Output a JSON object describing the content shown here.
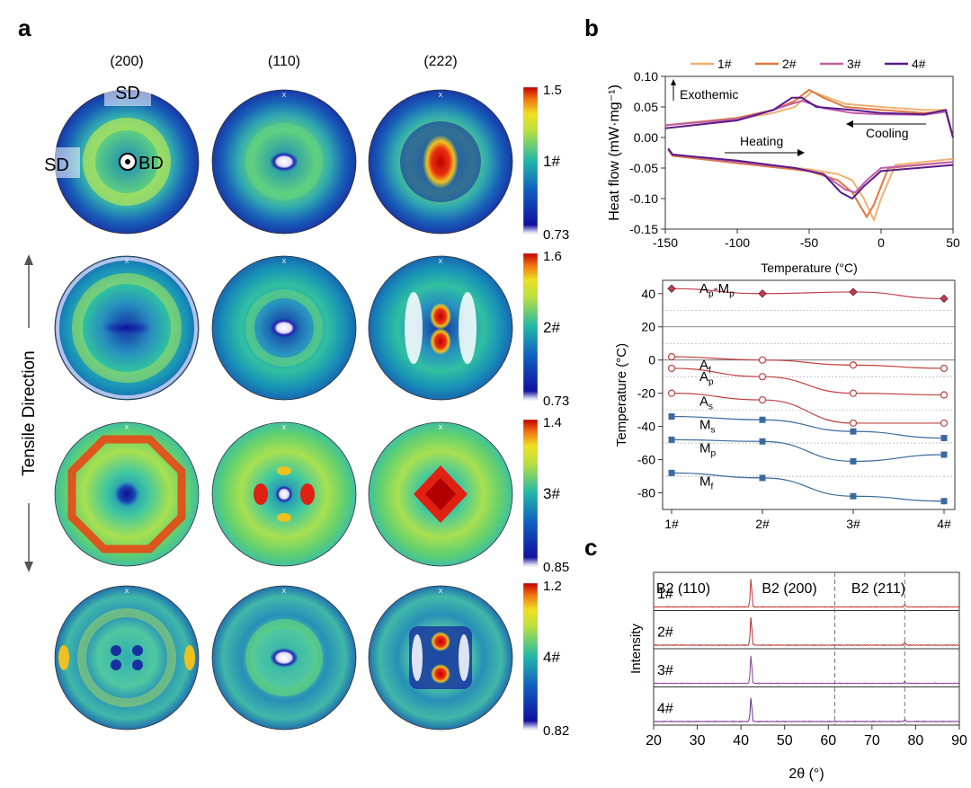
{
  "panels": {
    "a": "a",
    "b": "b",
    "c": "c"
  },
  "pole_figures": {
    "column_headers": [
      "(200)",
      "(110)",
      "(222)"
    ],
    "rows": [
      {
        "label": "1#",
        "cbar_max": "1.5",
        "cbar_mid": "1#",
        "cbar_min": "0.73",
        "patterns": [
          "ring",
          "dot",
          "bigred"
        ]
      },
      {
        "label": "2#",
        "cbar_max": "1.6",
        "cbar_mid": "2#",
        "cbar_min": "0.73",
        "patterns": [
          "ring2",
          "dot",
          "crescents"
        ]
      },
      {
        "label": "3#",
        "cbar_max": "1.4",
        "cbar_mid": "3#",
        "cbar_min": "0.85",
        "patterns": [
          "octagon",
          "quad",
          "diamond"
        ]
      },
      {
        "label": "4#",
        "cbar_max": "1.2",
        "cbar_mid": "4#",
        "cbar_min": "0.82",
        "patterns": [
          "faint",
          "dot",
          "twin"
        ]
      }
    ],
    "sd_top": "SD",
    "sd_left": "SD",
    "bd": "BD",
    "side_label": "Tensile Direction",
    "colors": {
      "low": "#1a1a9e",
      "mid": "#20b2a0",
      "high": "#e01010"
    }
  },
  "chart_data": [
    {
      "type": "line",
      "id": "dsc",
      "xlabel": "Temperature (°C)",
      "ylabel": "Heat flow (mW·mg⁻¹)",
      "xlim": [
        -150,
        50
      ],
      "ylim": [
        -0.15,
        0.1
      ],
      "xticks": [
        "-150",
        "-100",
        "-50",
        "0",
        "50"
      ],
      "yticks": [
        "-0.15",
        "-0.10",
        "-0.05",
        "0.00",
        "0.05",
        "0.10"
      ],
      "annotations": {
        "exo": "Exothemic",
        "heating": "Heating",
        "cooling": "Cooling"
      },
      "legend": "top",
      "series": [
        {
          "name": "1#",
          "color": "#f0b070",
          "cooling": [
            [
              -150,
              0.02
            ],
            [
              -100,
              0.03
            ],
            [
              -75,
              0.04
            ],
            [
              -60,
              0.05
            ],
            [
              -48,
              0.075
            ],
            [
              -40,
              0.068
            ],
            [
              -25,
              0.055
            ],
            [
              0,
              0.05
            ],
            [
              30,
              0.045
            ],
            [
              45,
              0.045
            ],
            [
              50,
              0.0
            ]
          ],
          "heating": [
            [
              -148,
              -0.02
            ],
            [
              -145,
              -0.03
            ],
            [
              -100,
              -0.04
            ],
            [
              -50,
              -0.052
            ],
            [
              -30,
              -0.06
            ],
            [
              -20,
              -0.07
            ],
            [
              -12,
              -0.1
            ],
            [
              -5,
              -0.135
            ],
            [
              0,
              -0.1
            ],
            [
              10,
              -0.045
            ],
            [
              50,
              -0.035
            ]
          ]
        },
        {
          "name": "2#",
          "color": "#e07840",
          "cooling": [
            [
              -150,
              0.02
            ],
            [
              -100,
              0.032
            ],
            [
              -75,
              0.045
            ],
            [
              -60,
              0.06
            ],
            [
              -50,
              0.078
            ],
            [
              -40,
              0.065
            ],
            [
              -25,
              0.05
            ],
            [
              0,
              0.045
            ],
            [
              30,
              0.04
            ],
            [
              45,
              0.042
            ],
            [
              50,
              0.0
            ]
          ],
          "heating": [
            [
              -148,
              -0.02
            ],
            [
              -145,
              -0.03
            ],
            [
              -100,
              -0.042
            ],
            [
              -50,
              -0.055
            ],
            [
              -30,
              -0.07
            ],
            [
              -20,
              -0.09
            ],
            [
              -10,
              -0.13
            ],
            [
              -5,
              -0.11
            ],
            [
              5,
              -0.05
            ],
            [
              50,
              -0.04
            ]
          ]
        },
        {
          "name": "3#",
          "color": "#c060a8",
          "cooling": [
            [
              -150,
              0.02
            ],
            [
              -100,
              0.03
            ],
            [
              -75,
              0.045
            ],
            [
              -62,
              0.055
            ],
            [
              -55,
              0.06
            ],
            [
              -40,
              0.048
            ],
            [
              -20,
              0.04
            ],
            [
              0,
              0.038
            ],
            [
              30,
              0.037
            ],
            [
              45,
              0.042
            ],
            [
              50,
              0.0
            ]
          ],
          "heating": [
            [
              -148,
              -0.02
            ],
            [
              -145,
              -0.028
            ],
            [
              -100,
              -0.04
            ],
            [
              -60,
              -0.05
            ],
            [
              -40,
              -0.06
            ],
            [
              -25,
              -0.085
            ],
            [
              -18,
              -0.09
            ],
            [
              -10,
              -0.07
            ],
            [
              0,
              -0.05
            ],
            [
              50,
              -0.04
            ]
          ]
        },
        {
          "name": "4#",
          "color": "#5a1a8a",
          "cooling": [
            [
              -150,
              0.015
            ],
            [
              -100,
              0.028
            ],
            [
              -75,
              0.045
            ],
            [
              -62,
              0.065
            ],
            [
              -55,
              0.065
            ],
            [
              -45,
              0.05
            ],
            [
              -20,
              0.045
            ],
            [
              0,
              0.04
            ],
            [
              30,
              0.038
            ],
            [
              45,
              0.045
            ],
            [
              50,
              0.0
            ]
          ],
          "heating": [
            [
              -148,
              -0.018
            ],
            [
              -145,
              -0.028
            ],
            [
              -100,
              -0.038
            ],
            [
              -60,
              -0.05
            ],
            [
              -40,
              -0.06
            ],
            [
              -28,
              -0.09
            ],
            [
              -20,
              -0.1
            ],
            [
              -12,
              -0.08
            ],
            [
              0,
              -0.055
            ],
            [
              50,
              -0.045
            ]
          ]
        }
      ]
    },
    {
      "type": "scatter",
      "id": "transformation",
      "ylabel": "Temperature (°C)",
      "categories": [
        "1#",
        "2#",
        "3#",
        "4#"
      ],
      "ylim": [
        -90,
        48
      ],
      "yticks": [
        "40",
        "20",
        "0",
        "-20",
        "-40",
        "-60",
        "-80"
      ],
      "series": [
        {
          "name": "Ap-Mp",
          "label_main": "A",
          "label_sub": "p",
          "label_tail": "-M",
          "label_sub2": "p",
          "marker": "diamond",
          "color": "#c04050",
          "values": [
            43,
            40,
            41,
            37
          ]
        },
        {
          "name": "Af",
          "label_main": "A",
          "label_sub": "f",
          "marker": "circle",
          "color": "#c04040",
          "values": [
            2,
            0,
            -3,
            -5
          ]
        },
        {
          "name": "Ap",
          "label_main": "A",
          "label_sub": "p",
          "marker": "circle",
          "color": "#c04040",
          "values": [
            -5,
            -10,
            -20,
            -21
          ]
        },
        {
          "name": "As",
          "label_main": "A",
          "label_sub": "s",
          "marker": "circle",
          "color": "#c04040",
          "values": [
            -20,
            -24,
            -38,
            -38
          ]
        },
        {
          "name": "Ms",
          "label_main": "M",
          "label_sub": "s",
          "marker": "square",
          "color": "#3a6aa0",
          "values": [
            -34,
            -36,
            -43,
            -47
          ]
        },
        {
          "name": "Mp",
          "label_main": "M",
          "label_sub": "p",
          "marker": "square",
          "color": "#3a6aa0",
          "values": [
            -48,
            -49,
            -61,
            -57
          ]
        },
        {
          "name": "Mf",
          "label_main": "M",
          "label_sub": "f",
          "marker": "square",
          "color": "#3a6aa0",
          "values": [
            -68,
            -71,
            -82,
            -85
          ]
        }
      ]
    },
    {
      "type": "line",
      "id": "xrd",
      "xlabel": "2θ (°)",
      "ylabel": "Intensity",
      "xlim": [
        20,
        90
      ],
      "xticks": [
        "20",
        "30",
        "40",
        "50",
        "60",
        "70",
        "80",
        "90"
      ],
      "peak_labels": [
        "B2 (110)",
        "B2 (200)",
        "B2 (211)"
      ],
      "peak_positions": [
        42.3,
        61.5,
        77.5
      ],
      "series": [
        {
          "name": "1#",
          "color": "#c83030",
          "peaks": [
            [
              42.3,
              1.0
            ],
            [
              77.5,
              0.08
            ]
          ]
        },
        {
          "name": "2#",
          "color": "#b82828",
          "peaks": [
            [
              42.3,
              1.0
            ],
            [
              77.5,
              0.1
            ]
          ]
        },
        {
          "name": "3#",
          "color": "#8a3a9a",
          "peaks": [
            [
              42.3,
              1.0
            ],
            [
              77.5,
              0.06
            ]
          ]
        },
        {
          "name": "4#",
          "color": "#6a2a8a",
          "peaks": [
            [
              42.3,
              0.85
            ],
            [
              77.5,
              0.05
            ]
          ]
        }
      ]
    }
  ]
}
